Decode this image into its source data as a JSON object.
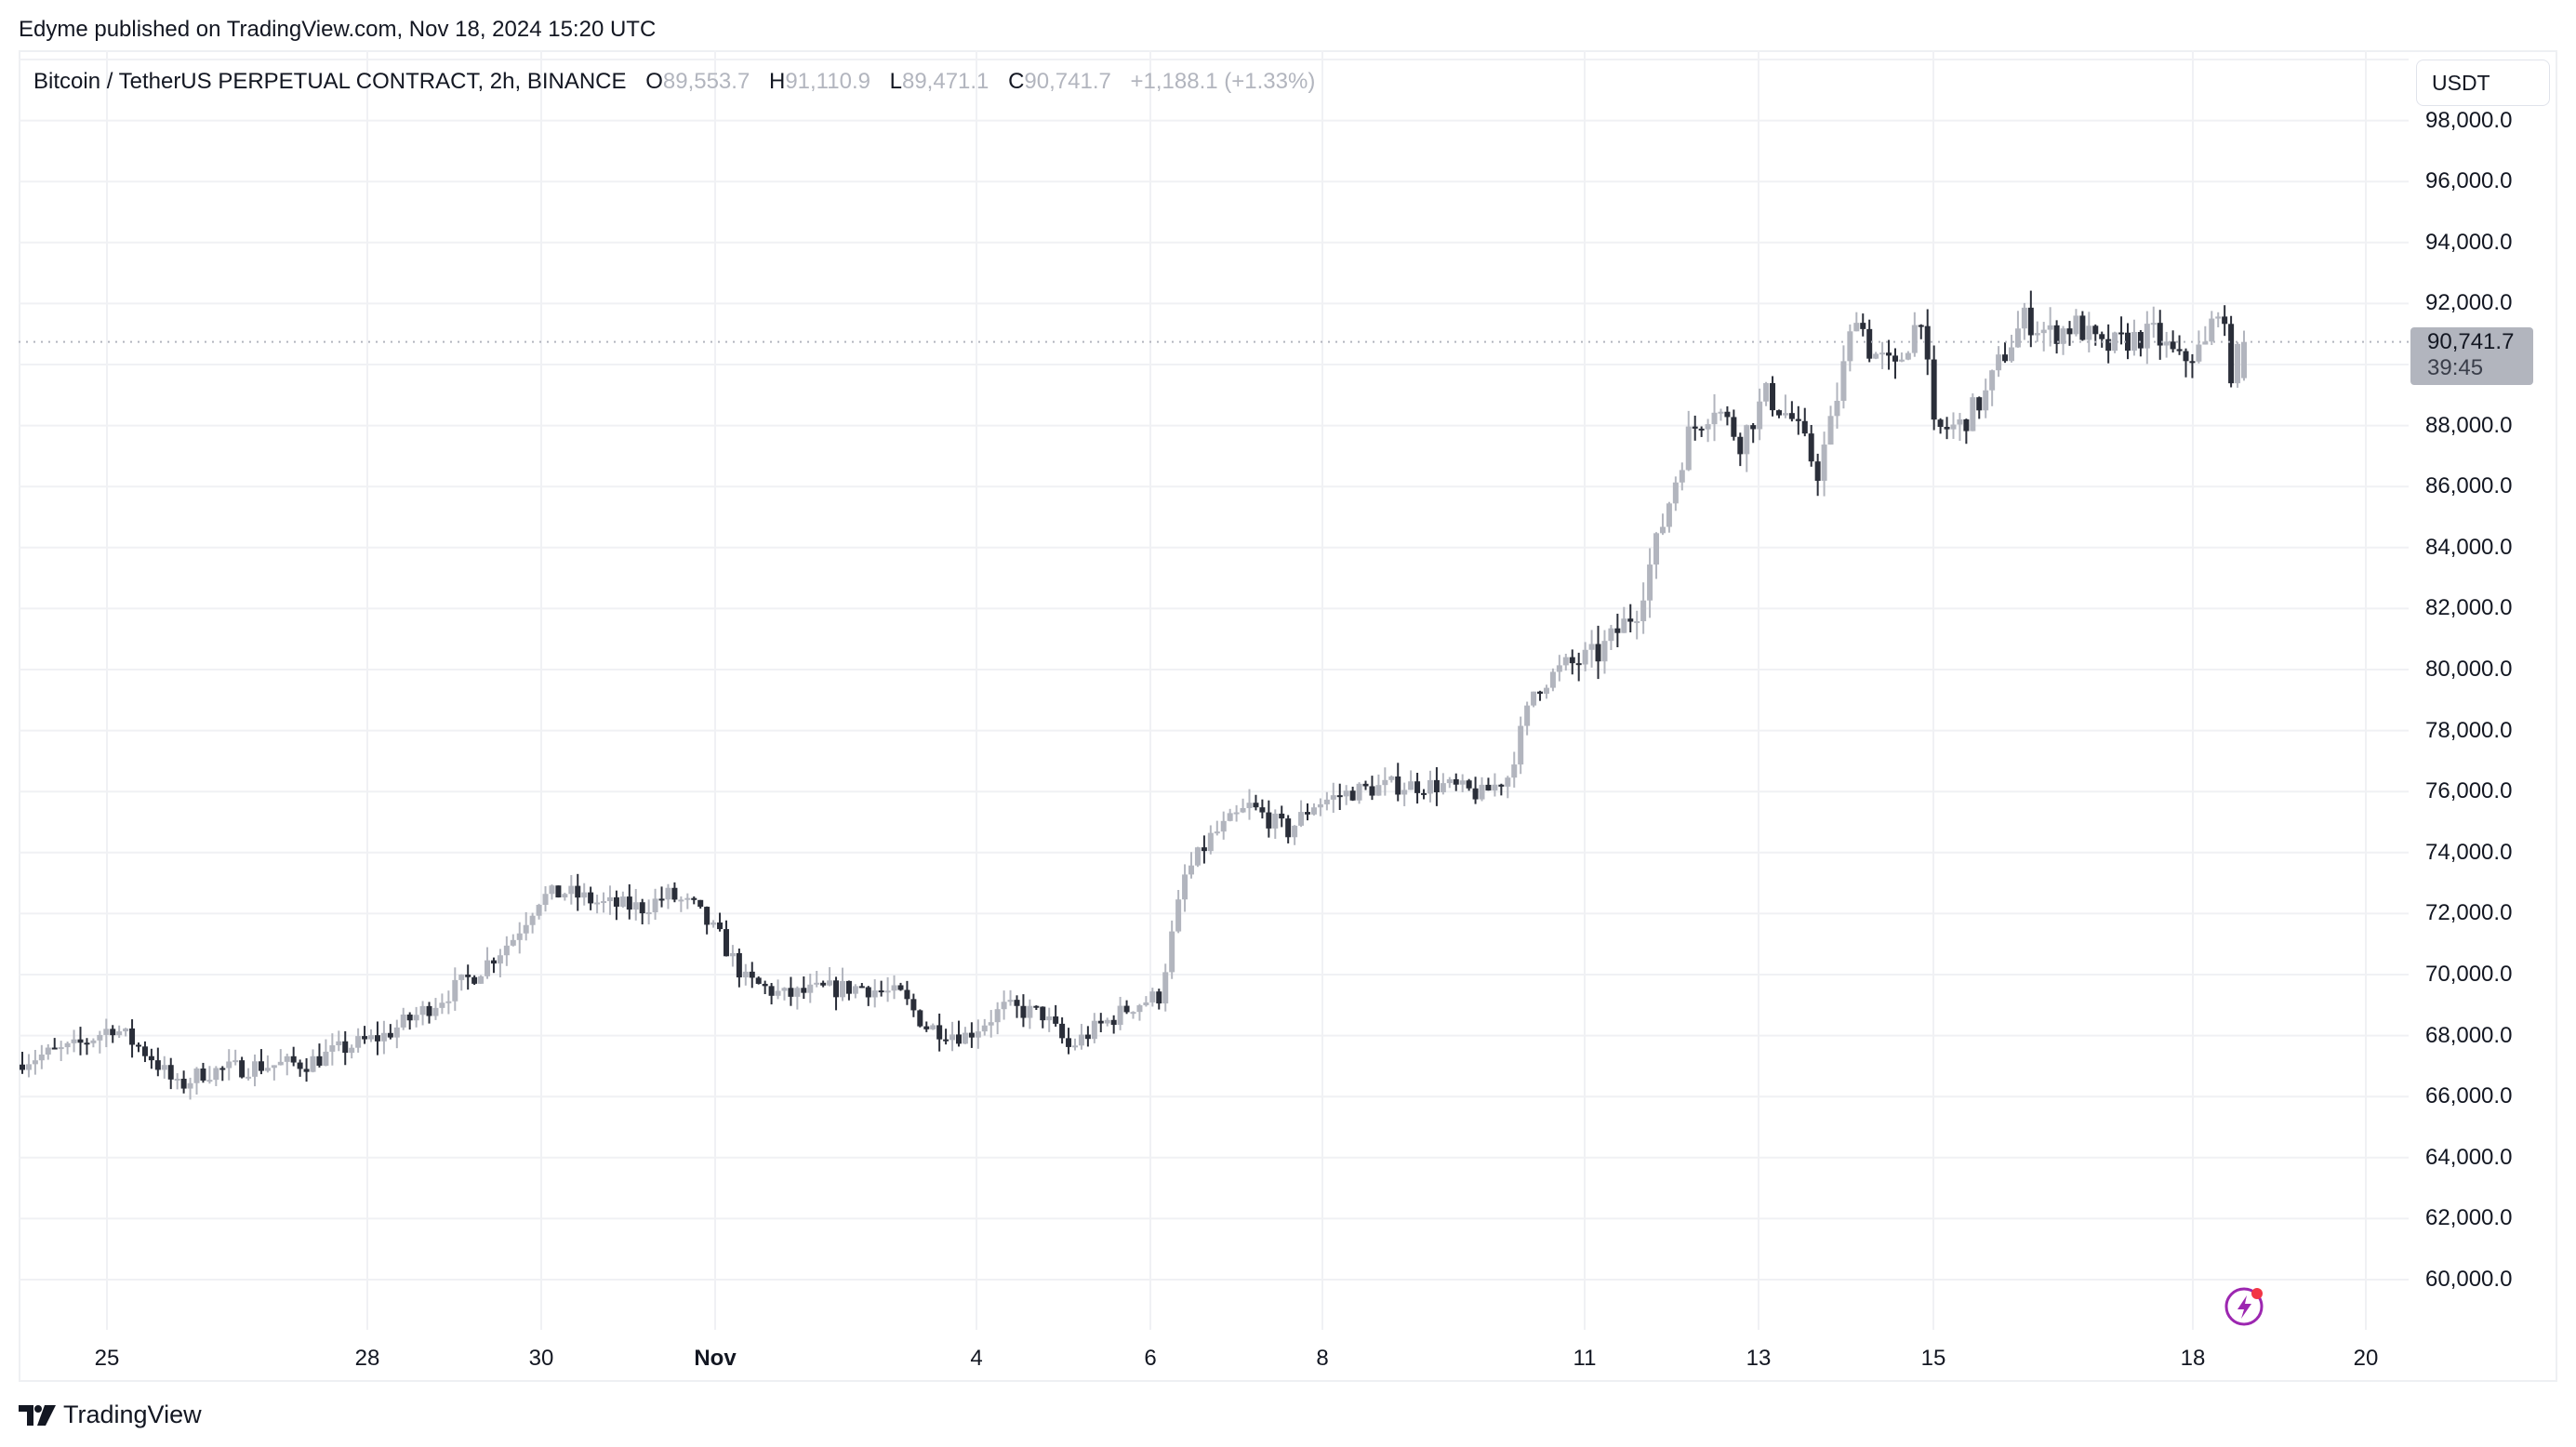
{
  "header": {
    "publish_text": "Edyme published on TradingView.com, Nov 18, 2024 15:20 UTC"
  },
  "legend": {
    "symbol": "Bitcoin / TetherUS PERPETUAL CONTRACT, 2h, BINANCE",
    "open_label": "O",
    "open": "89,553.7",
    "high_label": "H",
    "high": "91,110.9",
    "low_label": "L",
    "low": "89,471.1",
    "close_label": "C",
    "close": "90,741.7",
    "change": "+1,188.1 (+1.33%)"
  },
  "currency_button": "USDT",
  "last_price": {
    "price": "90,741.7",
    "countdown": "39:45"
  },
  "footer": {
    "brand": "TradingView"
  },
  "colors": {
    "up_candle": "#b2b5be",
    "down_candle": "#2a2e39",
    "grid": "#f0f1f4",
    "price_line": "#b2b5be",
    "alert_icon": "#9c27b0",
    "alert_dot": "#f23645"
  },
  "chart_data": {
    "type": "candlestick",
    "title": "Bitcoin / TetherUS PERPETUAL CONTRACT, 2h, BINANCE",
    "xlabel": "",
    "ylabel": "USDT",
    "ylim": [
      58500,
      100000
    ],
    "grid": true,
    "y_ticks": [
      "98,000.0",
      "96,000.0",
      "94,000.0",
      "92,000.0",
      "90,000.0",
      "88,000.0",
      "86,000.0",
      "84,000.0",
      "82,000.0",
      "80,000.0",
      "78,000.0",
      "76,000.0",
      "74,000.0",
      "72,000.0",
      "70,000.0",
      "68,000.0",
      "66,000.0",
      "64,000.0",
      "62,000.0",
      "60,000.0"
    ],
    "y_tick_values": [
      98000,
      96000,
      94000,
      92000,
      90000,
      88000,
      86000,
      84000,
      82000,
      80000,
      78000,
      76000,
      74000,
      72000,
      70000,
      68000,
      66000,
      64000,
      62000,
      60000
    ],
    "x_ticks": [
      {
        "label": "25",
        "x": 115,
        "bold": false
      },
      {
        "label": "28",
        "x": 395,
        "bold": false
      },
      {
        "label": "30",
        "x": 582,
        "bold": false
      },
      {
        "label": "Nov",
        "x": 769,
        "bold": true
      },
      {
        "label": "4",
        "x": 1050,
        "bold": false
      },
      {
        "label": "6",
        "x": 1237,
        "bold": false
      },
      {
        "label": "8",
        "x": 1422,
        "bold": false
      },
      {
        "label": "11",
        "x": 1704,
        "bold": false
      },
      {
        "label": "13",
        "x": 1891,
        "bold": false
      },
      {
        "label": "15",
        "x": 2079,
        "bold": false
      },
      {
        "label": "18",
        "x": 2358,
        "bold": false
      },
      {
        "label": "20",
        "x": 2544,
        "bold": false
      }
    ],
    "last_close": 90741.7,
    "series_close_path": [
      [
        0,
        67200
      ],
      [
        8,
        67600
      ],
      [
        14,
        68300
      ],
      [
        20,
        67300
      ],
      [
        24,
        66300
      ],
      [
        28,
        66800
      ],
      [
        36,
        67000
      ],
      [
        44,
        67100
      ],
      [
        50,
        67600
      ],
      [
        56,
        68000
      ],
      [
        62,
        68800
      ],
      [
        70,
        70000
      ],
      [
        76,
        71200
      ],
      [
        80,
        72500
      ],
      [
        84,
        72700
      ],
      [
        90,
        72300
      ],
      [
        96,
        72200
      ],
      [
        100,
        72600
      ],
      [
        104,
        72200
      ],
      [
        108,
        71200
      ],
      [
        112,
        69800
      ],
      [
        118,
        69300
      ],
      [
        124,
        69500
      ],
      [
        130,
        69600
      ],
      [
        136,
        69300
      ],
      [
        140,
        68300
      ],
      [
        146,
        68000
      ],
      [
        152,
        68900
      ],
      [
        158,
        68700
      ],
      [
        162,
        67600
      ],
      [
        166,
        68200
      ],
      [
        172,
        69000
      ],
      [
        176,
        69300
      ],
      [
        180,
        73200
      ],
      [
        184,
        74500
      ],
      [
        190,
        75500
      ],
      [
        196,
        74700
      ],
      [
        200,
        75600
      ],
      [
        206,
        76000
      ],
      [
        212,
        76200
      ],
      [
        220,
        76200
      ],
      [
        226,
        75900
      ],
      [
        230,
        76500
      ],
      [
        234,
        79300
      ],
      [
        238,
        80000
      ],
      [
        244,
        80500
      ],
      [
        250,
        82000
      ],
      [
        254,
        84800
      ],
      [
        258,
        87700
      ],
      [
        262,
        88700
      ],
      [
        266,
        87500
      ],
      [
        270,
        89000
      ],
      [
        274,
        88200
      ],
      [
        278,
        86500
      ],
      [
        280,
        88000
      ],
      [
        284,
        91800
      ],
      [
        286,
        90500
      ],
      [
        290,
        89800
      ],
      [
        294,
        91700
      ],
      [
        296,
        87800
      ],
      [
        300,
        88000
      ],
      [
        304,
        89000
      ],
      [
        306,
        90000
      ],
      [
        310,
        91500
      ],
      [
        314,
        91000
      ],
      [
        318,
        91300
      ],
      [
        322,
        90500
      ],
      [
        326,
        90800
      ],
      [
        330,
        91000
      ],
      [
        334,
        90100
      ],
      [
        338,
        90600
      ],
      [
        340,
        92000
      ],
      [
        342,
        89800
      ],
      [
        344,
        90741.7
      ]
    ]
  }
}
